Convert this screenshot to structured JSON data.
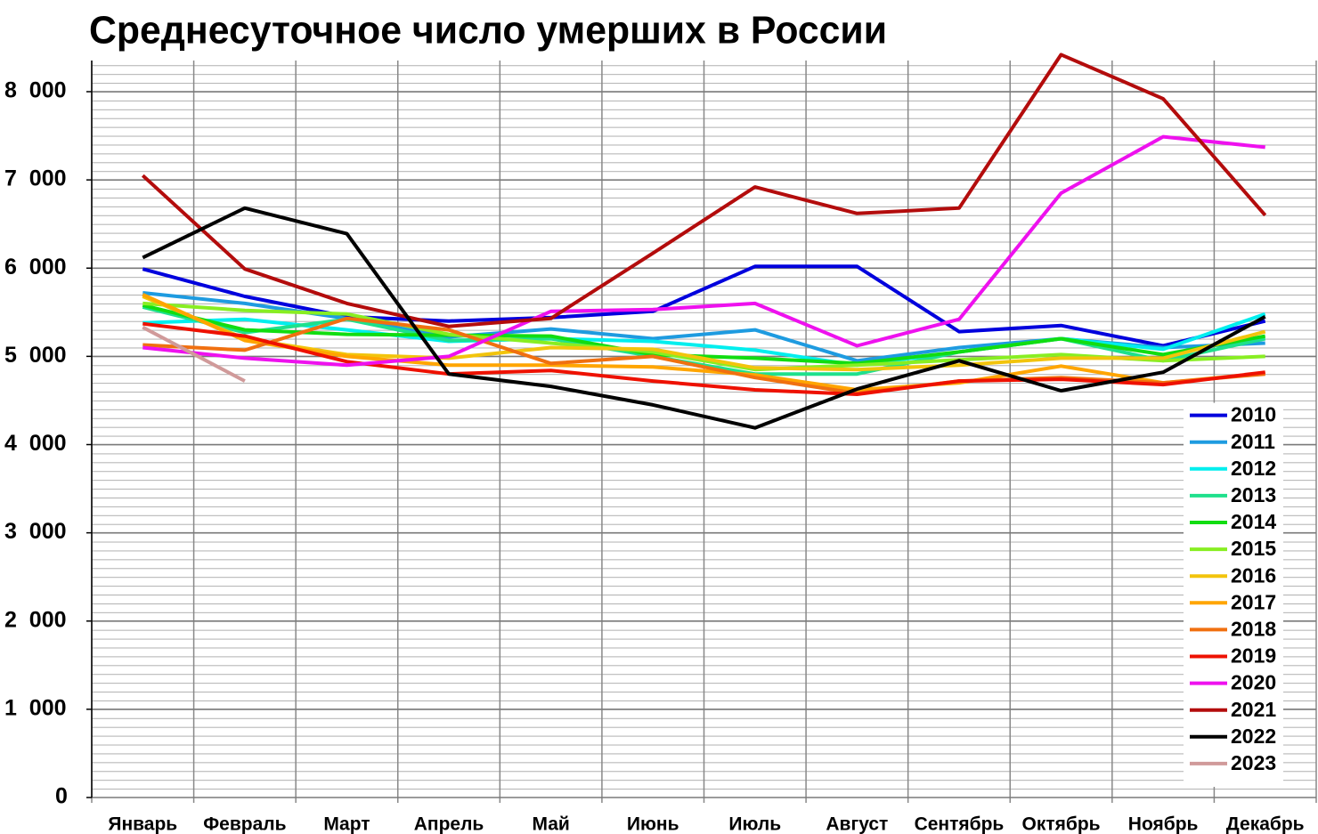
{
  "chart_data": {
    "type": "line",
    "title": "Среднесуточное число умерших в России",
    "categories": [
      "Январь",
      "Февраль",
      "Март",
      "Апрель",
      "Май",
      "Июнь",
      "Июль",
      "Август",
      "Сентябрь",
      "Октябрь",
      "Ноябрь",
      "Декабрь"
    ],
    "ylim": [
      0,
      8000
    ],
    "yticks": [
      0,
      {
        "value": 1000,
        "label": "1  000"
      },
      {
        "value": 2000,
        "label": "2  000"
      },
      {
        "value": 3000,
        "label": "3  000"
      },
      {
        "value": 4000,
        "label": "4  000"
      },
      {
        "value": 5000,
        "label": "5  000"
      },
      {
        "value": 6000,
        "label": "6  000"
      },
      {
        "value": 7000,
        "label": "7  000"
      },
      {
        "value": 8000,
        "label": "8  000"
      }
    ],
    "grid": true,
    "legend": "lower right",
    "series": [
      {
        "name": "2010",
        "color": "#0000dd",
        "values": [
          5990,
          5680,
          5450,
          5400,
          5440,
          5510,
          6020,
          6020,
          5280,
          5350,
          5120,
          5400
        ]
      },
      {
        "name": "2011",
        "color": "#1e9be0",
        "values": [
          5720,
          5600,
          5430,
          5220,
          5310,
          5200,
          5300,
          4950,
          5100,
          5200,
          5100,
          5150
        ]
      },
      {
        "name": "2012",
        "color": "#00eeee",
        "values": [
          5380,
          5420,
          5300,
          5170,
          5200,
          5170,
          5070,
          4900,
          5050,
          5200,
          5080,
          5480
        ]
      },
      {
        "name": "2013",
        "color": "#1ee08c",
        "values": [
          5560,
          5270,
          5420,
          5180,
          5200,
          5000,
          4800,
          4800,
          5050,
          5200,
          4950,
          5200
        ]
      },
      {
        "name": "2014",
        "color": "#11dd11",
        "values": [
          5580,
          5300,
          5250,
          5240,
          5230,
          5020,
          4980,
          4920,
          5050,
          5200,
          5020,
          5230
        ]
      },
      {
        "name": "2015",
        "color": "#88ee22",
        "values": [
          5600,
          5520,
          5480,
          5250,
          5150,
          5050,
          4850,
          4900,
          4960,
          5020,
          4950,
          5000
        ]
      },
      {
        "name": "2016",
        "color": "#f2c40c",
        "values": [
          5680,
          5200,
          5020,
          4980,
          5100,
          5080,
          4870,
          4850,
          4900,
          4980,
          4980,
          5280
        ]
      },
      {
        "name": "2017",
        "color": "#ffa500",
        "values": [
          5700,
          5180,
          5000,
          4900,
          4900,
          4880,
          4790,
          4620,
          4700,
          4890,
          4700,
          4810
        ]
      },
      {
        "name": "2018",
        "color": "#f07010",
        "values": [
          5130,
          5070,
          5430,
          5300,
          4920,
          5000,
          4760,
          4580,
          4720,
          4760,
          4700,
          4800
        ]
      },
      {
        "name": "2019",
        "color": "#ee1100",
        "values": [
          5370,
          5230,
          4940,
          4800,
          4840,
          4720,
          4620,
          4570,
          4720,
          4740,
          4680,
          4820
        ]
      },
      {
        "name": "2020",
        "color": "#ee11ee",
        "values": [
          5100,
          4980,
          4900,
          5000,
          5510,
          5530,
          5600,
          5120,
          5420,
          6850,
          7490,
          7370
        ]
      },
      {
        "name": "2021",
        "color": "#b30c0c",
        "values": [
          7050,
          5990,
          5600,
          5340,
          5430,
          6170,
          6920,
          6620,
          6680,
          8420,
          7920,
          6600
        ]
      },
      {
        "name": "2022",
        "color": "#000000",
        "values": [
          6120,
          6680,
          6390,
          4800,
          4660,
          4450,
          4190,
          4630,
          4950,
          4610,
          4820,
          5450
        ]
      },
      {
        "name": "2023",
        "color": "#d09a9a",
        "values": [
          5330,
          4720,
          null,
          null,
          null,
          null,
          null,
          null,
          null,
          null,
          null,
          null
        ]
      }
    ]
  }
}
